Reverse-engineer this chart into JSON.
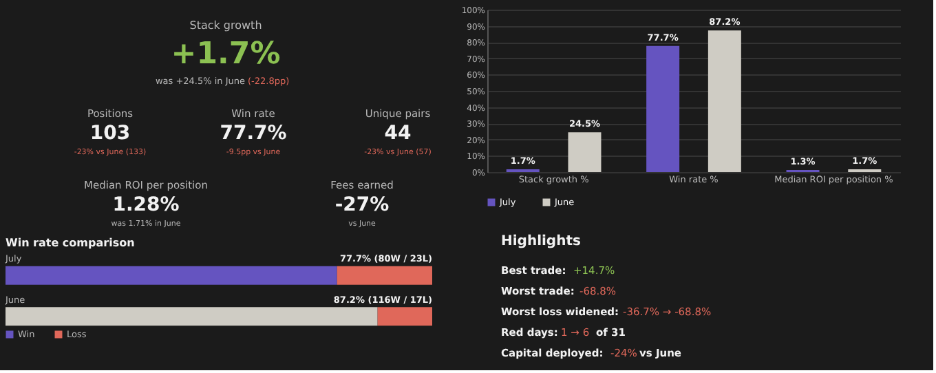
{
  "chart_data": [
    {
      "type": "other",
      "title": "Stack growth",
      "annotations": [
        "+1.7%",
        "was +24.5% in June",
        "(-22.8pp)",
        "Positions",
        "103",
        "-23% vs June (133)",
        "Win rate",
        "77.7%",
        "-9.5pp vs June",
        "Unique pairs",
        "44",
        "-23% vs June (57)",
        "Median ROI per position",
        "1.28%",
        "was 1.71% in June",
        "Fees earned",
        "-27%",
        "vs June"
      ]
    },
    {
      "type": "bar",
      "categories": [
        "Stack growth %",
        "Win rate %",
        "Median ROI per position %"
      ],
      "series": [
        {
          "name": "July",
          "color": "#6554c0",
          "values": [
            1.7,
            77.7,
            1.3
          ],
          "value_labels": [
            "1.7%",
            "77.7%",
            "1.3%"
          ]
        },
        {
          "name": "June",
          "color": "#cfccc4",
          "values": [
            24.5,
            87.2,
            1.7
          ],
          "value_labels": [
            "24.5%",
            "87.2%",
            "1.7%"
          ]
        }
      ],
      "ylim": [
        0,
        100
      ],
      "yticks": [
        {
          "value": 0,
          "label": "0%"
        },
        {
          "value": 10,
          "label": "10%"
        },
        {
          "value": 20,
          "label": "20%"
        },
        {
          "value": 30,
          "label": "30%"
        },
        {
          "value": 40,
          "label": "40%"
        },
        {
          "value": 50,
          "label": "50%"
        },
        {
          "value": 60,
          "label": "60%"
        },
        {
          "value": 70,
          "label": "70%"
        },
        {
          "value": 80,
          "label": "80%"
        },
        {
          "value": 90,
          "label": "90%"
        },
        {
          "value": 100,
          "label": "100%"
        }
      ],
      "grid": "y",
      "legend": "bottom left"
    },
    {
      "type": "bar",
      "title": "Win rate comparison",
      "orientation": "horizontal",
      "stacked": true,
      "categories": [
        "July",
        "June"
      ],
      "series": [
        {
          "name": "Win",
          "color": "#6554c0",
          "colors": [
            "#6554c0",
            "#cfccc4"
          ],
          "values": [
            77.7,
            87.2
          ],
          "value_labels": [
            "77.7% (80W / 23L)",
            "87.2% (116W / 17L)"
          ]
        },
        {
          "name": "Loss",
          "color": "#e0685a",
          "values": [
            22.3,
            12.8
          ]
        }
      ],
      "legend": "bottom left"
    },
    {
      "type": "other",
      "title": "Highlights",
      "annotations": [
        "Best trade:",
        "+14.7%",
        "Worst trade:",
        "-68.8%",
        "Worst loss widened:",
        "-36.7% → -68.8%",
        "Red days:",
        "1 → 6",
        "of 31",
        "Capital deployed:",
        "-24%",
        "vs June"
      ]
    }
  ]
}
